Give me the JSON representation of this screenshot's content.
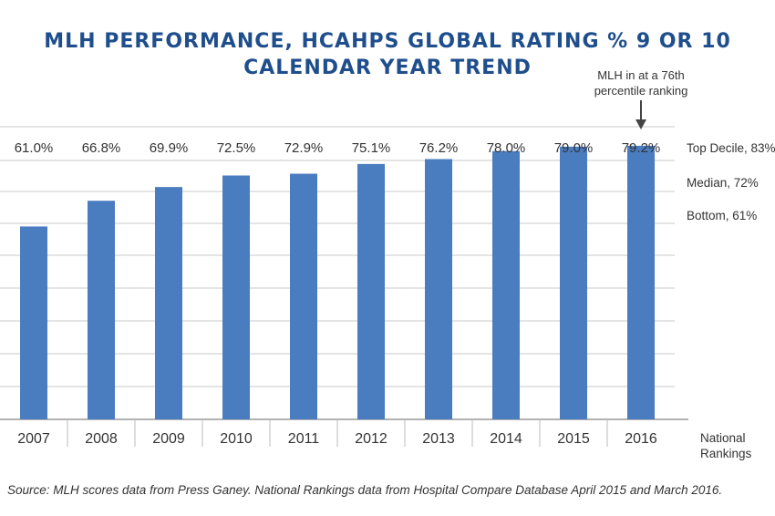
{
  "title_lines": [
    "MLH PERFORMANCE, HCAHPS GLOBAL RATING % 9 OR 10",
    "CALENDAR YEAR TREND"
  ],
  "source_note": "Source: MLH scores data from Press Ganey. National Rankings data from Hospital Compare Database April 2015 and March 2016.",
  "colors": {
    "bar": "#4a7cc0",
    "title": "#1f4e8c",
    "grid": "#c8c8c8"
  },
  "chart_data": {
    "type": "bar",
    "categories": [
      "2007",
      "2008",
      "2009",
      "2010",
      "2011",
      "2012",
      "2013",
      "2014",
      "2015",
      "2016"
    ],
    "values": [
      61.0,
      66.8,
      69.9,
      72.5,
      72.9,
      75.1,
      76.2,
      78.0,
      79.0,
      79.2
    ],
    "data_labels": [
      "61.0%",
      "66.8%",
      "69.9%",
      "72.5%",
      "72.9%",
      "75.1%",
      "76.2%",
      "78.0%",
      "79.0%",
      "79.2%"
    ],
    "ylim": [
      17.5,
      83.5
    ],
    "grid": true,
    "reference_lines": [
      {
        "label": "Top Decile, 83%",
        "value": 83
      },
      {
        "label": "Median, 72%",
        "value": 72
      },
      {
        "label": "Bottom, 61%",
        "value": 61
      }
    ],
    "right_axis_label": [
      "National",
      "Rankings"
    ],
    "annotation": {
      "text": [
        "MLH in at a 76th",
        "percentile ranking"
      ],
      "category": "2016"
    }
  }
}
